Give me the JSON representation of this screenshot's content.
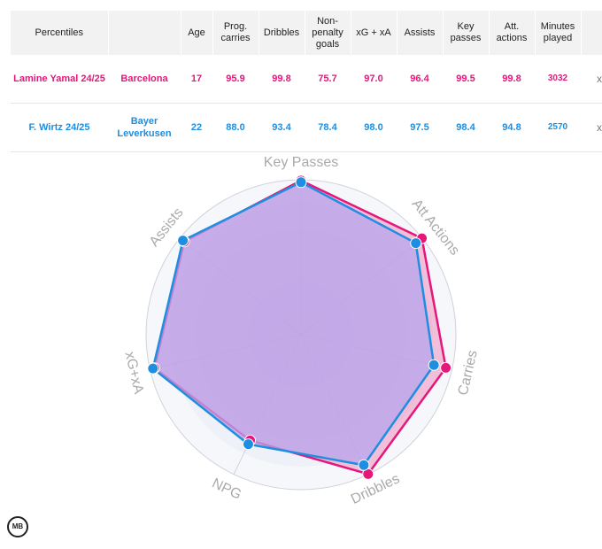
{
  "table": {
    "headers": [
      "Percentiles",
      "",
      "Age",
      "Prog. carries",
      "Dribbles",
      "Non-penalty goals",
      "xG + xA",
      "Assists",
      "Key passes",
      "Att. actions",
      "Minutes played",
      ""
    ],
    "rows": [
      {
        "player": "Lamine Yamal 24/25",
        "team": "Barcelona",
        "age": "17",
        "carries": "95.9",
        "dribbles": "99.8",
        "npg": "75.7",
        "xgxa": "97.0",
        "assists": "96.4",
        "key_passes": "99.5",
        "att_actions": "99.8",
        "minutes": "3032",
        "remove": "x"
      },
      {
        "player": "F. Wirtz 24/25",
        "team": "Bayer Leverkusen",
        "age": "22",
        "carries": "88.0",
        "dribbles": "93.4",
        "npg": "78.4",
        "xgxa": "98.0",
        "assists": "97.5",
        "key_passes": "98.4",
        "att_actions": "94.8",
        "minutes": "2570",
        "remove": "x"
      }
    ]
  },
  "logo_text": "MB",
  "chart_data": {
    "type": "radar",
    "axes": [
      "Key Passes",
      "Att Actions",
      "Carries",
      "Dribbles",
      "NPG",
      "xG+xA",
      "Assists"
    ],
    "range": [
      0,
      100
    ],
    "series": [
      {
        "name": "Lamine Yamal 24/25",
        "color": "#e6177a",
        "values": [
          99.5,
          99.8,
          95.9,
          99.8,
          75.7,
          97.0,
          96.4
        ]
      },
      {
        "name": "F. Wirtz 24/25",
        "color": "#1e8ee0",
        "values": [
          98.4,
          94.8,
          88.0,
          93.4,
          78.4,
          98.0,
          97.5
        ]
      }
    ],
    "fill_color": "#b7a6ec"
  }
}
